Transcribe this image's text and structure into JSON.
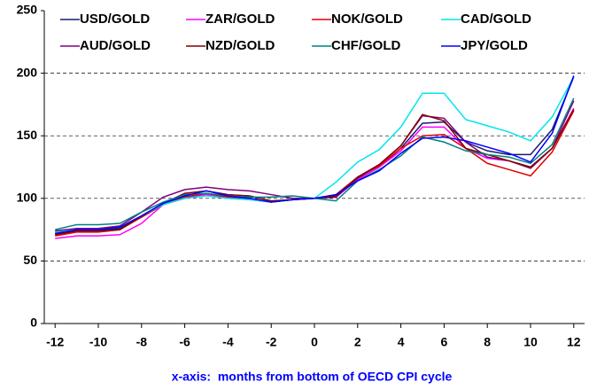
{
  "chart_data": {
    "type": "line",
    "x_label": "x-axis:  months from bottom of OECD CPI cycle",
    "x": [
      -12,
      -11,
      -10,
      -9,
      -8,
      -7,
      -6,
      -5,
      -4,
      -3,
      -2,
      -1,
      0,
      1,
      2,
      3,
      4,
      5,
      6,
      7,
      8,
      9,
      10,
      11,
      12
    ],
    "xlim": [
      -12.5,
      12.5
    ],
    "xticks": [
      -12,
      -10,
      -8,
      -6,
      -4,
      -2,
      0,
      2,
      4,
      6,
      8,
      10,
      12
    ],
    "ylim": [
      0,
      250
    ],
    "yticks": [
      0,
      50,
      100,
      150,
      200,
      250
    ],
    "grid": true,
    "series": [
      {
        "name": "USD/GOLD",
        "color": "#1a1a6e",
        "values": [
          72,
          74,
          74,
          76,
          85,
          95,
          101,
          104,
          101,
          100,
          97,
          99,
          100,
          102,
          115,
          125,
          140,
          160,
          161,
          145,
          138,
          135,
          135,
          155,
          197
        ]
      },
      {
        "name": "ZAR/GOLD",
        "color": "#ff00ff",
        "values": [
          68,
          70,
          70,
          71,
          80,
          95,
          100,
          103,
          100,
          99,
          97,
          99,
          100,
          101,
          115,
          125,
          138,
          157,
          157,
          140,
          132,
          130,
          125,
          140,
          172
        ]
      },
      {
        "name": "NOK/GOLD",
        "color": "#e00000",
        "values": [
          70,
          73,
          73,
          75,
          85,
          95,
          101,
          104,
          101,
          100,
          97,
          99,
          100,
          103,
          117,
          126,
          140,
          150,
          151,
          140,
          128,
          123,
          118,
          137,
          170
        ]
      },
      {
        "name": "CAD/GOLD",
        "color": "#00e5ee",
        "values": [
          73,
          76,
          76,
          77,
          86,
          95,
          100,
          102,
          100,
          99,
          97,
          99,
          100,
          113,
          129,
          139,
          157,
          184,
          184,
          163,
          158,
          153,
          146,
          165,
          197
        ]
      },
      {
        "name": "AUD/GOLD",
        "color": "#800080",
        "values": [
          74,
          76,
          76,
          78,
          89,
          101,
          107,
          109,
          107,
          106,
          103,
          100,
          100,
          101,
          116,
          127,
          142,
          166,
          164,
          145,
          133,
          130,
          124,
          140,
          178
        ]
      },
      {
        "name": "NZD/GOLD",
        "color": "#800000",
        "values": [
          71,
          74,
          74,
          75,
          86,
          96,
          104,
          106,
          103,
          102,
          98,
          99,
          100,
          102,
          117,
          127,
          142,
          167,
          162,
          140,
          135,
          130,
          125,
          140,
          171
        ]
      },
      {
        "name": "CHF/GOLD",
        "color": "#008080",
        "values": [
          75,
          79,
          79,
          80,
          89,
          97,
          103,
          104,
          102,
          101,
          101,
          102,
          100,
          98,
          114,
          123,
          134,
          149,
          145,
          138,
          135,
          133,
          128,
          143,
          180
        ]
      },
      {
        "name": "JPY/GOLD",
        "color": "#0000ff",
        "values": [
          72,
          75,
          75,
          77,
          86,
          96,
          102,
          106,
          102,
          100,
          97,
          99,
          100,
          103,
          114,
          122,
          136,
          148,
          149,
          146,
          141,
          136,
          129,
          152,
          198
        ]
      }
    ]
  }
}
